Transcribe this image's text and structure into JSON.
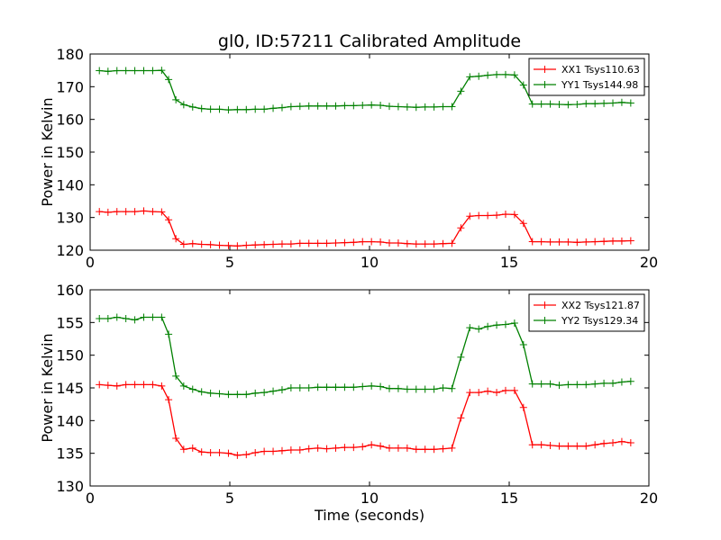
{
  "chart_data": [
    {
      "type": "line",
      "title": "gl0, ID:57211 Calibrated Amplitude",
      "xlabel": "",
      "ylabel": "Power in Kelvin",
      "xlim": [
        0,
        20
      ],
      "ylim": [
        120,
        180
      ],
      "xticks": [
        "0",
        "5",
        "10",
        "15",
        "20"
      ],
      "yticks": [
        "120",
        "130",
        "140",
        "150",
        "160",
        "170",
        "180"
      ],
      "legend_position": "top-right",
      "grid": false,
      "x": [
        0.33,
        0.64,
        0.96,
        1.28,
        1.6,
        1.92,
        2.24,
        2.56,
        2.81,
        3.07,
        3.35,
        3.67,
        3.99,
        4.31,
        4.63,
        4.95,
        5.27,
        5.59,
        5.91,
        6.23,
        6.55,
        6.87,
        7.19,
        7.51,
        7.83,
        8.15,
        8.47,
        8.79,
        9.11,
        9.43,
        9.75,
        10.07,
        10.39,
        10.71,
        11.03,
        11.35,
        11.67,
        11.99,
        12.31,
        12.63,
        12.95,
        13.27,
        13.59,
        13.91,
        14.23,
        14.55,
        14.87,
        15.19,
        15.51,
        15.83,
        16.15,
        16.47,
        16.79,
        17.11,
        17.43,
        17.75,
        18.07,
        18.39,
        18.71,
        19.03,
        19.35
      ],
      "series": [
        {
          "name": "XX1 Tsys110.63",
          "color": "#ff0000",
          "values": [
            131.8,
            131.6,
            131.8,
            131.8,
            131.8,
            132.0,
            131.8,
            131.7,
            129.3,
            123.5,
            121.8,
            122.0,
            121.8,
            121.7,
            121.5,
            121.4,
            121.3,
            121.5,
            121.6,
            121.7,
            121.8,
            121.9,
            121.9,
            122.1,
            122.1,
            122.1,
            122.1,
            122.2,
            122.3,
            122.4,
            122.6,
            122.6,
            122.5,
            122.2,
            122.2,
            122.0,
            121.9,
            121.9,
            121.9,
            122.0,
            122.1,
            126.8,
            130.4,
            130.6,
            130.6,
            130.7,
            131.0,
            130.9,
            128.2,
            122.6,
            122.6,
            122.5,
            122.5,
            122.5,
            122.4,
            122.5,
            122.6,
            122.7,
            122.8,
            122.8,
            122.9
          ]
        },
        {
          "name": "YY1 Tsys144.98",
          "color": "#008000",
          "values": [
            174.9,
            174.7,
            174.9,
            174.9,
            174.9,
            174.9,
            174.9,
            175.0,
            172.2,
            166.0,
            164.5,
            163.8,
            163.3,
            163.1,
            163.1,
            162.9,
            163.0,
            163.0,
            163.1,
            163.1,
            163.4,
            163.6,
            163.9,
            164.0,
            164.1,
            164.1,
            164.1,
            164.1,
            164.2,
            164.2,
            164.3,
            164.4,
            164.3,
            164.0,
            163.9,
            163.8,
            163.7,
            163.8,
            163.8,
            163.9,
            163.9,
            168.6,
            173.0,
            173.2,
            173.5,
            173.7,
            173.7,
            173.6,
            170.5,
            164.7,
            164.7,
            164.7,
            164.6,
            164.5,
            164.6,
            164.8,
            164.8,
            164.9,
            165.0,
            165.2,
            165.0
          ]
        }
      ]
    },
    {
      "type": "line",
      "title": "",
      "xlabel": "Time (seconds)",
      "ylabel": "Power in Kelvin",
      "xlim": [
        0,
        20
      ],
      "ylim": [
        130,
        160
      ],
      "xticks": [
        "0",
        "5",
        "10",
        "15",
        "20"
      ],
      "yticks": [
        "130",
        "135",
        "140",
        "145",
        "150",
        "155",
        "160"
      ],
      "legend_position": "top-right",
      "grid": false,
      "x": [
        0.33,
        0.64,
        0.96,
        1.28,
        1.6,
        1.92,
        2.24,
        2.56,
        2.81,
        3.07,
        3.35,
        3.67,
        3.99,
        4.31,
        4.63,
        4.95,
        5.27,
        5.59,
        5.91,
        6.23,
        6.55,
        6.87,
        7.19,
        7.51,
        7.83,
        8.15,
        8.47,
        8.79,
        9.11,
        9.43,
        9.75,
        10.07,
        10.39,
        10.71,
        11.03,
        11.35,
        11.67,
        11.99,
        12.31,
        12.63,
        12.95,
        13.27,
        13.59,
        13.91,
        14.23,
        14.55,
        14.87,
        15.19,
        15.51,
        15.83,
        16.15,
        16.47,
        16.79,
        17.11,
        17.43,
        17.75,
        18.07,
        18.39,
        18.71,
        19.03,
        19.35
      ],
      "series": [
        {
          "name": "XX2 Tsys121.87",
          "color": "#ff0000",
          "values": [
            145.5,
            145.4,
            145.3,
            145.5,
            145.5,
            145.5,
            145.5,
            145.3,
            143.2,
            137.3,
            135.6,
            135.8,
            135.2,
            135.1,
            135.1,
            135.0,
            134.7,
            134.8,
            135.1,
            135.3,
            135.3,
            135.4,
            135.5,
            135.5,
            135.7,
            135.8,
            135.7,
            135.8,
            135.9,
            135.9,
            136.0,
            136.3,
            136.1,
            135.8,
            135.8,
            135.8,
            135.6,
            135.6,
            135.6,
            135.7,
            135.8,
            140.4,
            144.3,
            144.3,
            144.5,
            144.3,
            144.6,
            144.6,
            142.0,
            136.3,
            136.3,
            136.2,
            136.1,
            136.1,
            136.1,
            136.1,
            136.3,
            136.5,
            136.6,
            136.8,
            136.6
          ]
        },
        {
          "name": "YY2 Tsys129.34",
          "color": "#008000",
          "values": [
            155.6,
            155.6,
            155.8,
            155.6,
            155.4,
            155.8,
            155.8,
            155.8,
            153.2,
            146.8,
            145.3,
            144.8,
            144.4,
            144.2,
            144.1,
            144.0,
            144.0,
            144.0,
            144.2,
            144.3,
            144.5,
            144.7,
            145.0,
            145.0,
            145.0,
            145.1,
            145.1,
            145.1,
            145.1,
            145.1,
            145.2,
            145.3,
            145.2,
            144.9,
            144.9,
            144.8,
            144.8,
            144.8,
            144.8,
            145.0,
            144.9,
            149.7,
            154.2,
            154.0,
            154.4,
            154.6,
            154.7,
            154.9,
            151.6,
            145.6,
            145.6,
            145.6,
            145.4,
            145.5,
            145.5,
            145.5,
            145.6,
            145.7,
            145.7,
            145.9,
            146.0
          ]
        }
      ]
    }
  ]
}
